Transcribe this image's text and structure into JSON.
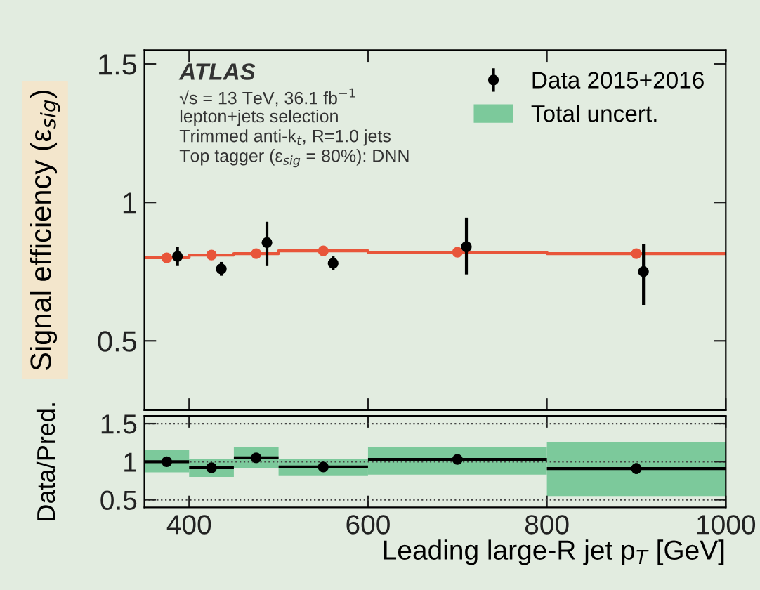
{
  "chart_data": [
    {
      "type": "scatter",
      "ylabel": "Signal efficiency (ε$_{sig}$)",
      "xlim": [
        350,
        1000
      ],
      "ylim": [
        0.25,
        1.55
      ],
      "xticks": [
        {
          "value": 400,
          "label": null
        },
        {
          "value": 600,
          "label": null
        },
        {
          "value": 800,
          "label": null
        },
        {
          "value": 1000,
          "label": null
        }
      ],
      "yticks": [
        0.5,
        1,
        1.5
      ],
      "tick_labels": "y",
      "legend": "top right",
      "annotations": [
        "ATLAS",
        "√s = 13 TeV, 36.1 fb$^{−1}$",
        "lepton+jets selection",
        "Trimmed anti-k$_{t}$, R=1.0 jets",
        "Top tagger (ε$_{sig}$ = 80%): DNN"
      ],
      "series": [
        {
          "type": "step",
          "color": "#e8553a",
          "x": [
            350,
            400,
            450,
            500,
            600,
            800,
            1000
          ],
          "values": [
            0.8,
            0.81,
            0.815,
            0.825,
            0.82,
            0.815,
            0.815
          ]
        },
        {
          "type": "scatter",
          "color": "#e8553a",
          "x": [
            375,
            425,
            475,
            550,
            700,
            900
          ],
          "values": [
            0.8,
            0.81,
            0.815,
            0.825,
            0.82,
            0.815
          ]
        },
        {
          "name": "Data 2015+2016",
          "color": "#000000",
          "x": [
            387,
            436,
            487,
            561,
            710,
            908
          ],
          "values": [
            0.805,
            0.76,
            0.855,
            0.78,
            0.84,
            0.75
          ],
          "errors": [
            [
              0.77,
              0.84
            ],
            [
              0.735,
              0.785
            ],
            [
              0.77,
              0.93
            ],
            [
              0.755,
              0.805
            ],
            [
              0.74,
              0.945
            ],
            [
              0.63,
              0.85
            ]
          ]
        }
      ]
    },
    {
      "type": "scatter",
      "xlabel": "Leading large-R jet p$_{T}$ [GeV]",
      "ylabel": "Data/Pred.",
      "xlim": [
        350,
        1000
      ],
      "ylim": [
        0.4,
        1.6
      ],
      "xticks": [
        400,
        600,
        800,
        1000
      ],
      "yticks": [
        0.5,
        1,
        1.5
      ],
      "grid": "y",
      "legend": "top right",
      "series": [
        {
          "type": "histogram",
          "name": "Total uncert.",
          "color": "#7cc99b",
          "bins": [
            350,
            400,
            450,
            500,
            600,
            800,
            1000
          ],
          "base": [
            0.86,
            0.8,
            0.91,
            0.82,
            0.83,
            0.55
          ],
          "values": [
            0.29,
            0.23,
            0.28,
            0.22,
            0.36,
            0.71
          ]
        },
        {
          "color": "#000000",
          "x": [
            375,
            425,
            475,
            550,
            700,
            900
          ],
          "values": [
            1.0,
            0.92,
            1.05,
            0.93,
            1.03,
            0.91
          ],
          "errors": [
            0.02,
            0.02,
            0.05,
            0.02,
            0.05,
            0.07
          ],
          "xerrors": [
            25,
            25,
            25,
            50,
            100,
            100
          ]
        }
      ]
    }
  ]
}
